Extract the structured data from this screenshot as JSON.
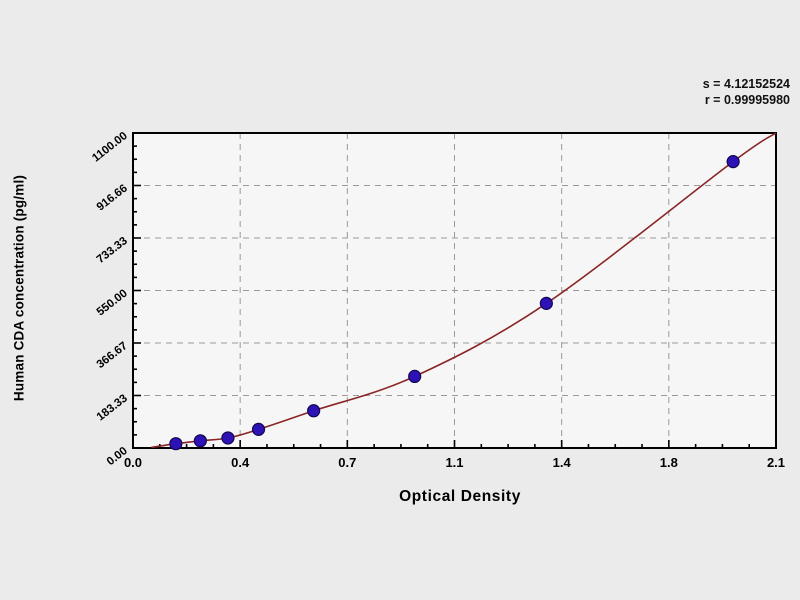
{
  "colors": {
    "page_bg": "#ebebeb",
    "plot_bg": "#f6f6f6",
    "grid": "#9a9a9a",
    "axis": "#000000",
    "curve": "#8b2525",
    "marker": "#2d12b5",
    "marker_edge": "#140650",
    "text": "#000000"
  },
  "chart_data": {
    "type": "scatter",
    "title": "",
    "xlabel": "Optical Density",
    "ylabel": "Human CDA concentration (pg/ml)",
    "xlim": [
      0,
      2.1
    ],
    "ylim": [
      0,
      1100
    ],
    "x_ticks": {
      "values": [
        0,
        0.35,
        0.7,
        1.05,
        1.4,
        1.75,
        2.1
      ],
      "labels": [
        "0.0",
        "0.4",
        "0.7",
        "1.1",
        "1.4",
        "1.8",
        "2.1"
      ]
    },
    "y_ticks": {
      "values": [
        0,
        183.33,
        366.67,
        550,
        733.33,
        916.66,
        1100
      ],
      "labels": [
        "0.00",
        "183.33",
        "366.67",
        "550.00",
        "733.33",
        "916.66",
        "1100.00"
      ]
    },
    "minor_tick_divisions": 4,
    "grid": {
      "on": true,
      "style": "dashed"
    },
    "legend": "none",
    "annotations": [
      "s = 4.12152524",
      "r = 0.99995980"
    ],
    "series": [
      {
        "name": "standard-points",
        "type": "scatter",
        "color": "#2d12b5",
        "points": [
          [
            0.14,
            15
          ],
          [
            0.22,
            25
          ],
          [
            0.31,
            35
          ],
          [
            0.41,
            65
          ],
          [
            0.59,
            130
          ],
          [
            0.92,
            250
          ],
          [
            1.35,
            505
          ],
          [
            1.96,
            1000
          ]
        ]
      },
      {
        "name": "fitted-curve",
        "type": "line",
        "color": "#8b2525",
        "points": [
          [
            0.06,
            2
          ],
          [
            0.14,
            15
          ],
          [
            0.22,
            25
          ],
          [
            0.31,
            35
          ],
          [
            0.41,
            65
          ],
          [
            0.59,
            130
          ],
          [
            0.92,
            250
          ],
          [
            1.35,
            505
          ],
          [
            1.96,
            1000
          ],
          [
            2.1,
            1100
          ]
        ]
      }
    ]
  }
}
